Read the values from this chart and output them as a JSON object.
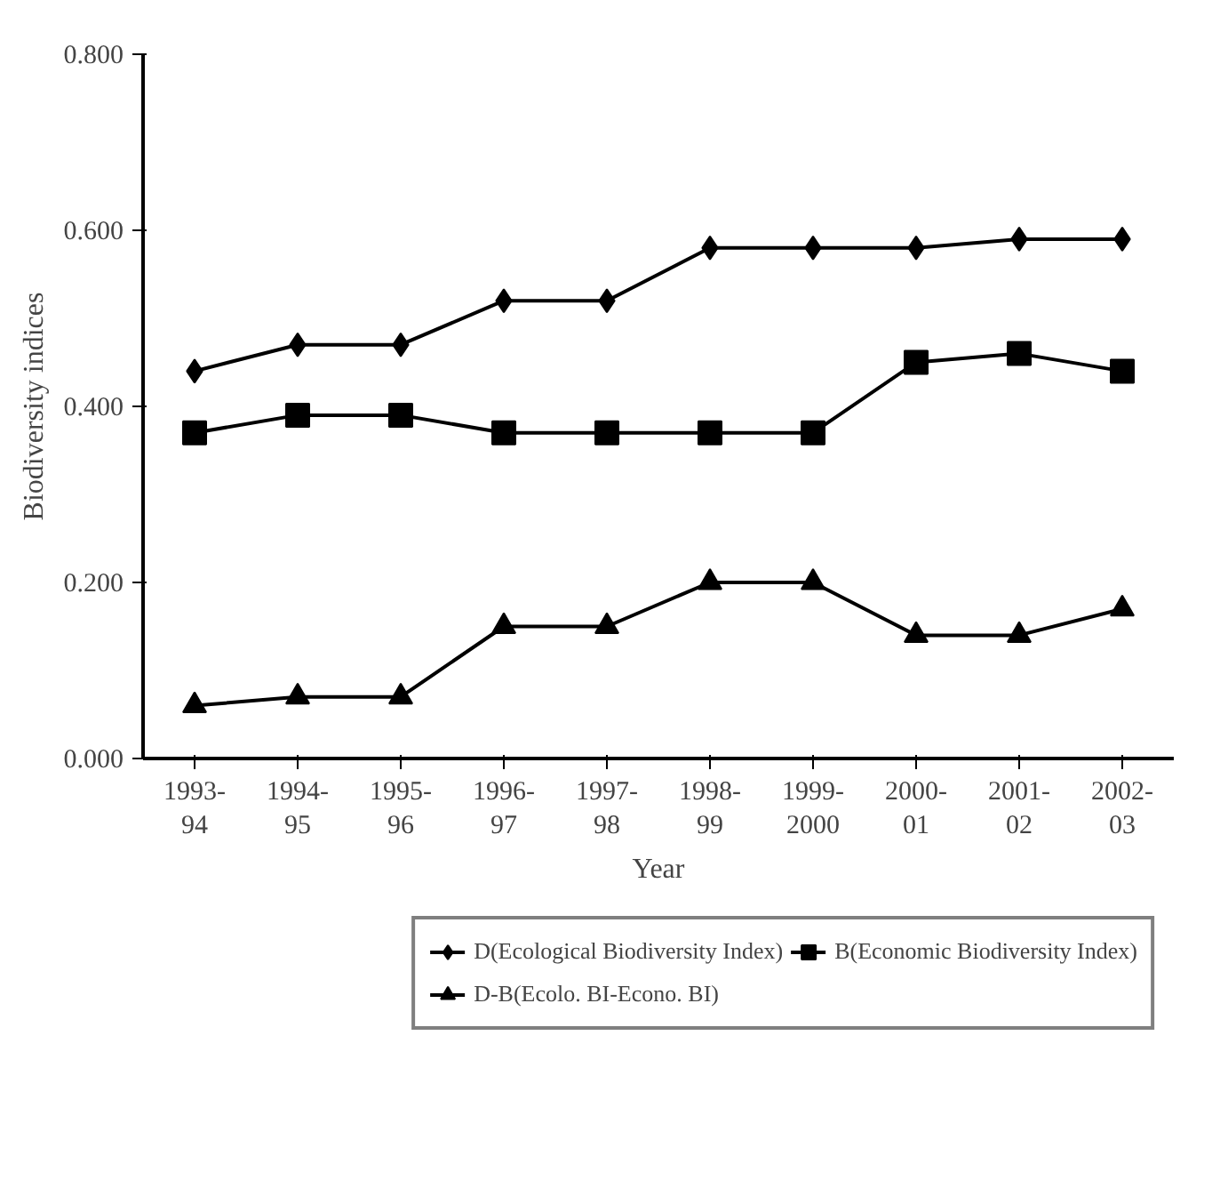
{
  "chart_data": {
    "type": "line",
    "xlabel": "Year",
    "ylabel": "Biodiversity indices",
    "categories": [
      "1993-\n94",
      "1994-\n95",
      "1995-\n96",
      "1996-\n97",
      "1997-\n98",
      "1998-\n99",
      "1999-\n2000",
      "2000-\n01",
      "2001-\n02",
      "2002-\n03"
    ],
    "series": [
      {
        "name": "D(Ecological Biodiversity Index)",
        "color": "#000000",
        "marker": "diamond",
        "values": [
          0.44,
          0.47,
          0.47,
          0.52,
          0.52,
          0.58,
          0.58,
          0.58,
          0.59,
          0.59
        ]
      },
      {
        "name": "B(Economic Biodiversity Index)",
        "color": "#000000",
        "marker": "square",
        "values": [
          0.37,
          0.39,
          0.39,
          0.37,
          0.37,
          0.37,
          0.37,
          0.45,
          0.46,
          0.44
        ]
      },
      {
        "name": "D-B(Ecolo. BI-Econo. BI)",
        "color": "#000000",
        "marker": "triangle",
        "values": [
          0.06,
          0.07,
          0.07,
          0.15,
          0.15,
          0.2,
          0.2,
          0.14,
          0.14,
          0.17
        ]
      }
    ],
    "ylim": [
      0,
      0.8
    ],
    "yticks": [
      {
        "value": 0,
        "label": "0.000"
      },
      {
        "value": 0.2,
        "label": "0.200"
      },
      {
        "value": 0.4,
        "label": "0.400"
      },
      {
        "value": 0.6,
        "label": "0.600"
      },
      {
        "value": 0.8,
        "label": "0.800"
      }
    ],
    "grid": false,
    "legend": "bottom",
    "line_style": "solid"
  }
}
